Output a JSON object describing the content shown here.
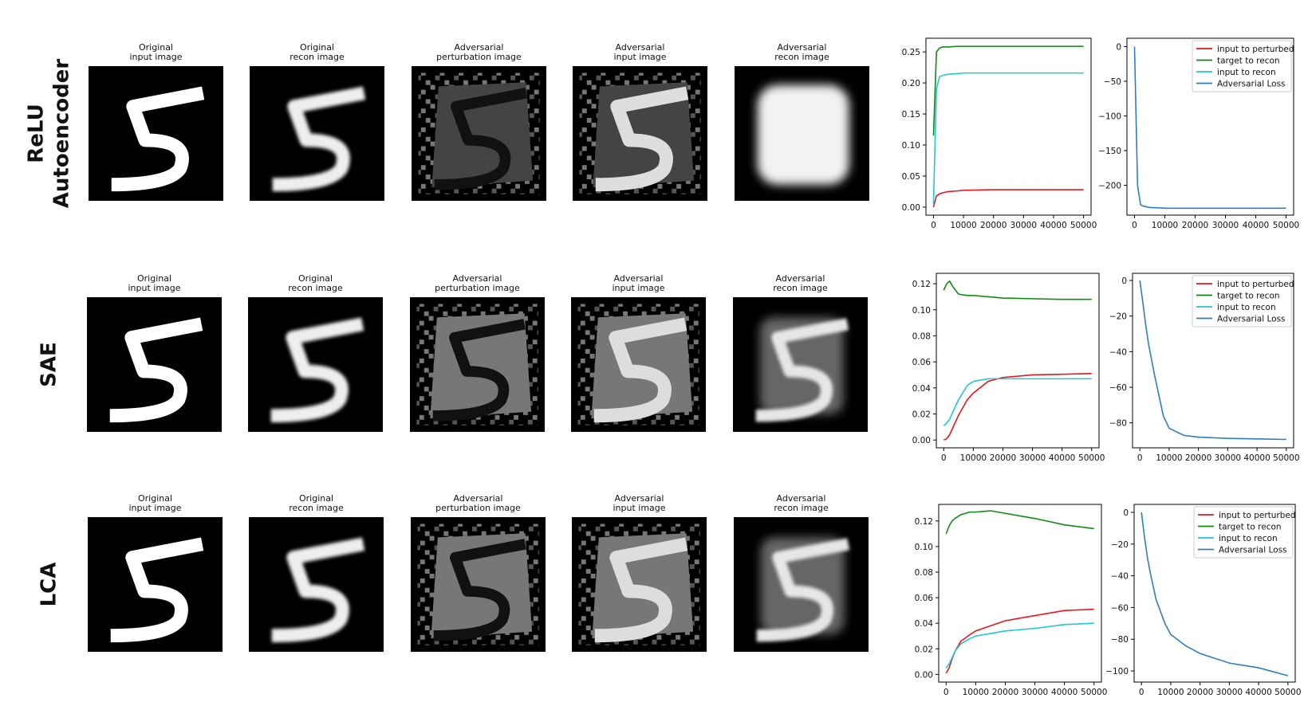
{
  "rows": [
    {
      "label": [
        "ReLU",
        "Autoencoder"
      ],
      "images": [
        {
          "title": [
            "Original",
            "input image"
          ]
        },
        {
          "title": [
            "Original",
            "recon image"
          ]
        },
        {
          "title": [
            "Adversarial",
            "perturbation image"
          ]
        },
        {
          "title": [
            "Adversarial",
            "input image"
          ]
        },
        {
          "title": [
            "Adversarial",
            "recon image"
          ]
        }
      ]
    },
    {
      "label": [
        "SAE"
      ],
      "images": [
        {
          "title": [
            "Original",
            "input image"
          ]
        },
        {
          "title": [
            "Original",
            "recon image"
          ]
        },
        {
          "title": [
            "Adversarial",
            "perturbation image"
          ]
        },
        {
          "title": [
            "Adversarial",
            "input image"
          ]
        },
        {
          "title": [
            "Adversarial",
            "recon image"
          ]
        }
      ]
    },
    {
      "label": [
        "LCA"
      ],
      "images": [
        {
          "title": [
            "Original",
            "input image"
          ]
        },
        {
          "title": [
            "Original",
            "recon image"
          ]
        },
        {
          "title": [
            "Adversarial",
            "perturbation image"
          ]
        },
        {
          "title": [
            "Adversarial",
            "input image"
          ]
        },
        {
          "title": [
            "Adversarial",
            "recon image"
          ]
        }
      ]
    }
  ],
  "chart_data": [
    {
      "type": "line",
      "x": [
        0,
        1000,
        2000,
        3000,
        5000,
        8000,
        10000,
        15000,
        20000,
        30000,
        40000,
        50000
      ],
      "xlim": [
        -2500,
        52500
      ],
      "xticks": [
        0,
        10000,
        20000,
        30000,
        40000,
        50000
      ],
      "ylim": [
        -0.013,
        0.272
      ],
      "yticks": [
        {
          "value": 0,
          "label": "0.00"
        },
        {
          "value": 0.05,
          "label": "0.05"
        },
        {
          "value": 0.1,
          "label": "0.10"
        },
        {
          "value": 0.15,
          "label": "0.15"
        },
        {
          "value": 0.2,
          "label": "0.20"
        },
        {
          "value": 0.25,
          "label": "0.25"
        }
      ],
      "series": [
        {
          "name": "input to perturbed",
          "color": "#e8171b",
          "values": [
            0,
            0.018,
            0.021,
            0.023,
            0.025,
            0.026,
            0.027,
            0.0275,
            0.028,
            0.028,
            0.028,
            0.028
          ]
        },
        {
          "name": "target to recon",
          "color": "#138a13",
          "values": [
            0.115,
            0.25,
            0.256,
            0.258,
            0.258,
            0.259,
            0.259,
            0.259,
            0.259,
            0.259,
            0.259,
            0.259
          ]
        },
        {
          "name": "input to recon",
          "color": "#1fc8cf",
          "values": [
            0.005,
            0.19,
            0.21,
            0.212,
            0.214,
            0.215,
            0.216,
            0.216,
            0.216,
            0.216,
            0.216,
            0.216
          ]
        }
      ]
    },
    {
      "type": "line",
      "x": [
        0,
        1000,
        2000,
        3000,
        5000,
        8000,
        10000,
        15000,
        20000,
        30000,
        40000,
        50000
      ],
      "xlim": [
        -2500,
        52500
      ],
      "xticks": [
        0,
        10000,
        20000,
        30000,
        40000,
        50000
      ],
      "ylim": [
        -243,
        12
      ],
      "yticks": [
        0,
        {
          "value": -50,
          "label": "−50"
        },
        {
          "value": -100,
          "label": "−100"
        },
        {
          "value": -150,
          "label": "−150"
        },
        {
          "value": -200,
          "label": "−200"
        }
      ],
      "legend": "upper right",
      "series": [
        {
          "name": "Adversarial Loss",
          "color": "#2e7dc0",
          "values": [
            0,
            -200,
            -228,
            -230,
            -232,
            -232.5,
            -233,
            -233,
            -233,
            -233,
            -233,
            -233
          ]
        }
      ]
    },
    {
      "type": "line",
      "x": [
        0,
        1000,
        2000,
        3000,
        5000,
        8000,
        10000,
        15000,
        20000,
        30000,
        40000,
        50000
      ],
      "xlim": [
        -2500,
        52500
      ],
      "xticks": [
        0,
        10000,
        20000,
        30000,
        40000,
        50000
      ],
      "ylim": [
        -0.006,
        0.128
      ],
      "yticks": [
        {
          "value": 0,
          "label": "0.00"
        },
        {
          "value": 0.02,
          "label": "0.02"
        },
        {
          "value": 0.04,
          "label": "0.04"
        },
        {
          "value": 0.06,
          "label": "0.06"
        },
        {
          "value": 0.08,
          "label": "0.08"
        },
        {
          "value": 0.1,
          "label": "0.10"
        },
        {
          "value": 0.12,
          "label": "0.12"
        }
      ],
      "series": [
        {
          "name": "input to perturbed",
          "color": "#e8171b",
          "values": [
            0,
            0.001,
            0.004,
            0.009,
            0.019,
            0.031,
            0.036,
            0.045,
            0.048,
            0.05,
            0.0505,
            0.051
          ]
        },
        {
          "name": "target to recon",
          "color": "#138a13",
          "values": [
            0.115,
            0.12,
            0.122,
            0.118,
            0.112,
            0.111,
            0.111,
            0.11,
            0.109,
            0.1085,
            0.108,
            0.108
          ]
        },
        {
          "name": "input to recon",
          "color": "#1fc8cf",
          "values": [
            0.011,
            0.013,
            0.016,
            0.021,
            0.031,
            0.042,
            0.045,
            0.047,
            0.047,
            0.047,
            0.047,
            0.047
          ]
        }
      ]
    },
    {
      "type": "line",
      "x": [
        0,
        1000,
        2000,
        3000,
        5000,
        8000,
        10000,
        15000,
        20000,
        30000,
        40000,
        50000
      ],
      "xlim": [
        -2500,
        52500
      ],
      "xticks": [
        0,
        10000,
        20000,
        30000,
        40000,
        50000
      ],
      "ylim": [
        -94,
        4
      ],
      "yticks": [
        0,
        {
          "value": -20,
          "label": "−20"
        },
        {
          "value": -40,
          "label": "−40"
        },
        {
          "value": -60,
          "label": "−60"
        },
        {
          "value": -80,
          "label": "−80"
        }
      ],
      "legend": "upper right",
      "series": [
        {
          "name": "Adversarial Loss",
          "color": "#2e7dc0",
          "values": [
            0,
            -12,
            -25,
            -36,
            -53,
            -76,
            -83,
            -87,
            -88,
            -88.7,
            -89,
            -89.3
          ]
        }
      ]
    },
    {
      "type": "line",
      "x": [
        0,
        1000,
        2000,
        3000,
        5000,
        8000,
        10000,
        15000,
        20000,
        30000,
        40000,
        50000
      ],
      "xlim": [
        -2500,
        52500
      ],
      "xticks": [
        0,
        10000,
        20000,
        30000,
        40000,
        50000
      ],
      "ylim": [
        -0.006,
        0.133
      ],
      "yticks": [
        {
          "value": 0,
          "label": "0.00"
        },
        {
          "value": 0.02,
          "label": "0.02"
        },
        {
          "value": 0.04,
          "label": "0.04"
        },
        {
          "value": 0.06,
          "label": "0.06"
        },
        {
          "value": 0.08,
          "label": "0.08"
        },
        {
          "value": 0.1,
          "label": "0.10"
        },
        {
          "value": 0.12,
          "label": "0.12"
        }
      ],
      "series": [
        {
          "name": "input to perturbed",
          "color": "#e8171b",
          "values": [
            0.001,
            0.005,
            0.012,
            0.018,
            0.026,
            0.031,
            0.034,
            0.038,
            0.042,
            0.046,
            0.05,
            0.051
          ]
        },
        {
          "name": "target to recon",
          "color": "#138a13",
          "values": [
            0.11,
            0.116,
            0.12,
            0.122,
            0.125,
            0.127,
            0.127,
            0.128,
            0.126,
            0.122,
            0.117,
            0.114
          ]
        },
        {
          "name": "input to recon",
          "color": "#1fc8cf",
          "values": [
            0.005,
            0.008,
            0.013,
            0.018,
            0.024,
            0.028,
            0.03,
            0.032,
            0.034,
            0.036,
            0.039,
            0.04
          ]
        }
      ]
    },
    {
      "type": "line",
      "x": [
        0,
        1000,
        2000,
        3000,
        5000,
        8000,
        10000,
        15000,
        20000,
        30000,
        40000,
        50000
      ],
      "xlim": [
        -2500,
        52500
      ],
      "xticks": [
        0,
        10000,
        20000,
        30000,
        40000,
        50000
      ],
      "ylim": [
        -107,
        5
      ],
      "yticks": [
        0,
        {
          "value": -20,
          "label": "−20"
        },
        {
          "value": -40,
          "label": "−40"
        },
        {
          "value": -60,
          "label": "−60"
        },
        {
          "value": -80,
          "label": "−80"
        },
        {
          "value": -100,
          "label": "−100"
        }
      ],
      "legend": "upper right",
      "series": [
        {
          "name": "Adversarial Loss",
          "color": "#2e7dc0",
          "values": [
            0,
            -15,
            -28,
            -38,
            -55,
            -70,
            -77,
            -84,
            -89,
            -95,
            -98,
            -103
          ]
        }
      ]
    }
  ]
}
